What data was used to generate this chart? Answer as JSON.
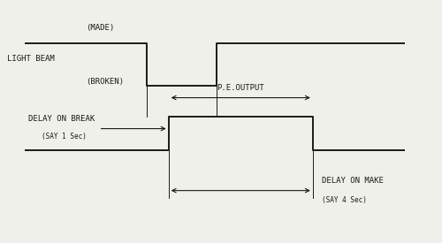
{
  "bg_color": "#f0f0eb",
  "line_color": "#1a1a1a",
  "light_beam_label": "LIGHT BEAM",
  "made_label": "(MADE)",
  "broken_label": "(BROKEN)",
  "pe_output_label": "P.E.OUTPUT",
  "delay_break_label": "DELAY ON BREAK",
  "delay_break_sub": "(SAY 1 Sec)",
  "delay_make_label": "DELAY ON MAKE",
  "delay_make_sub": "(SAY 4 Sec)",
  "font_size_main": 6.5,
  "font_size_sub": 5.5,
  "lw": 1.4
}
